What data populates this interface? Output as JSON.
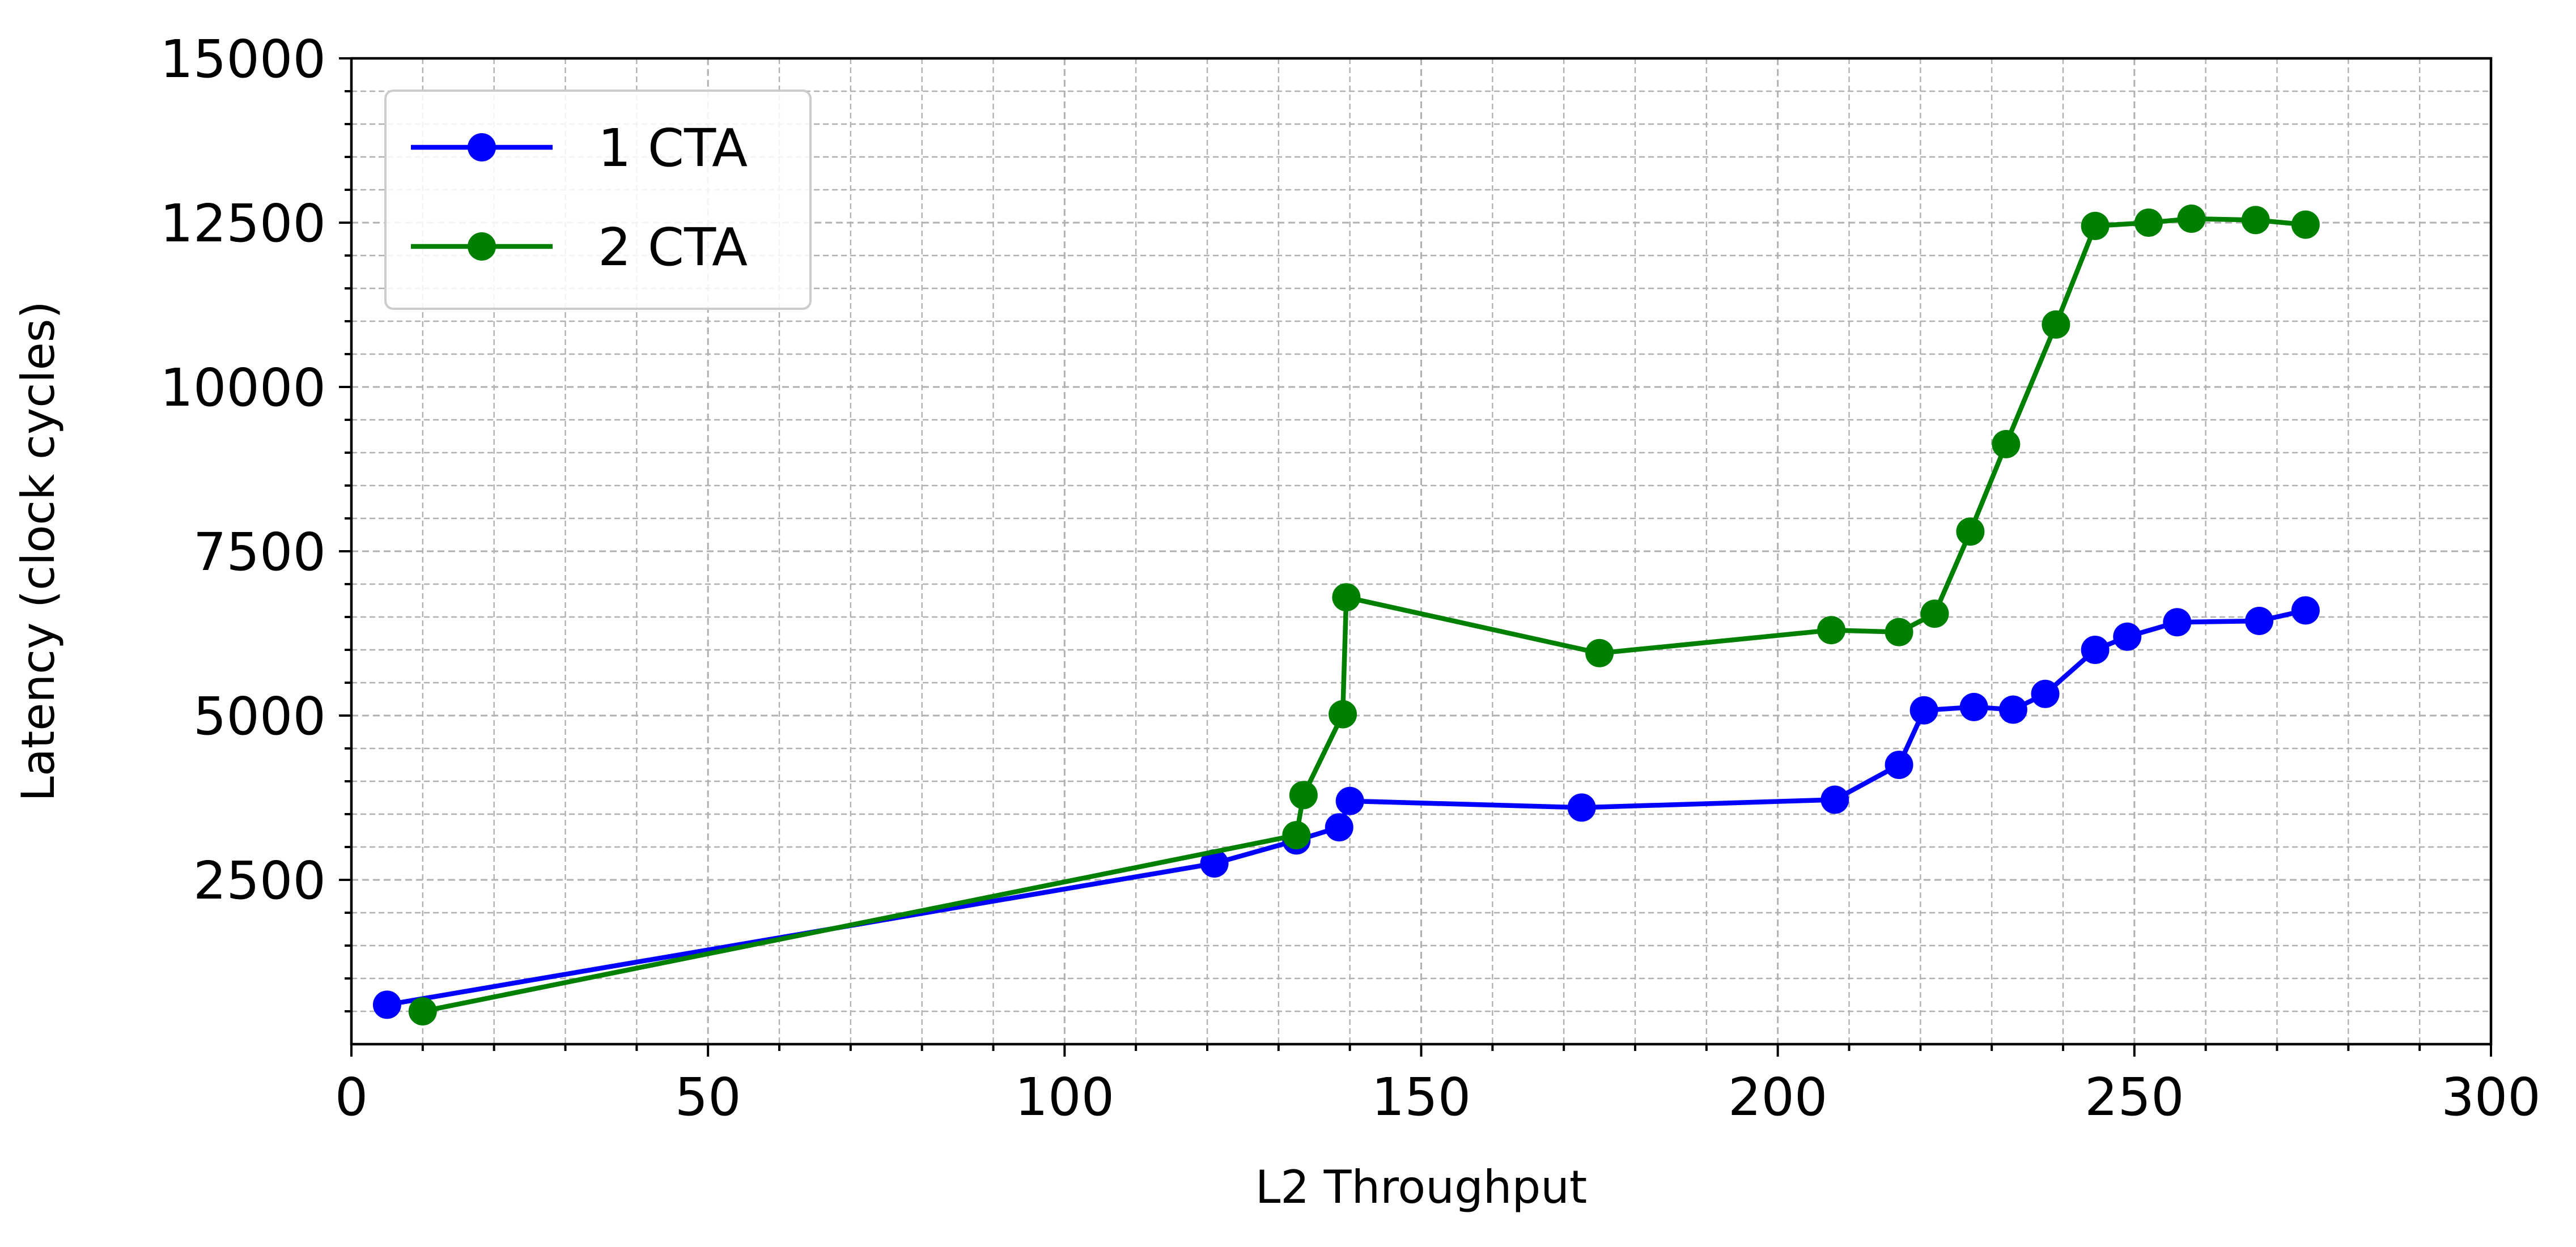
{
  "chart_data": {
    "type": "line",
    "title": "",
    "xlabel": "L2 Throughput",
    "ylabel": "Latency (clock cycles)",
    "xlim": [
      0,
      300
    ],
    "ylim": [
      0,
      15000
    ],
    "x_major_ticks": [
      0,
      50,
      100,
      150,
      200,
      250,
      300
    ],
    "x_minor_step": 10,
    "y_major_ticks": [
      2500,
      5000,
      7500,
      10000,
      12500,
      15000
    ],
    "y_minor_step": 500,
    "grid": true,
    "legend_position": "top-left",
    "series": [
      {
        "name": "1 CTA",
        "color": "#0000ff",
        "marker": "circle",
        "points": [
          [
            5,
            600
          ],
          [
            121,
            2750
          ],
          [
            132.5,
            3100
          ],
          [
            138.5,
            3300
          ],
          [
            140,
            3700
          ],
          [
            172.5,
            3600
          ],
          [
            208,
            3720
          ],
          [
            217,
            4250
          ],
          [
            220.5,
            5080
          ],
          [
            227.5,
            5130
          ],
          [
            233,
            5090
          ],
          [
            237.5,
            5330
          ],
          [
            244.5,
            6000
          ],
          [
            249,
            6200
          ],
          [
            256,
            6420
          ],
          [
            267.5,
            6440
          ],
          [
            274,
            6600
          ]
        ]
      },
      {
        "name": "2 CTA",
        "color": "#008000",
        "marker": "circle",
        "points": [
          [
            10,
            500
          ],
          [
            132.5,
            3180
          ],
          [
            133.5,
            3790
          ],
          [
            139,
            5020
          ],
          [
            139.5,
            6800
          ],
          [
            175,
            5950
          ],
          [
            207.5,
            6300
          ],
          [
            217,
            6270
          ],
          [
            222,
            6550
          ],
          [
            227,
            7800
          ],
          [
            232,
            9130
          ],
          [
            239,
            10950
          ],
          [
            244.5,
            12450
          ],
          [
            252,
            12500
          ],
          [
            258,
            12560
          ],
          [
            267,
            12540
          ],
          [
            274,
            12470
          ]
        ]
      }
    ]
  }
}
